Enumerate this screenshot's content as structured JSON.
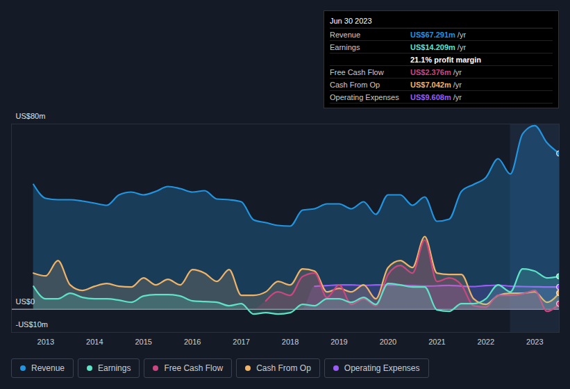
{
  "chart_data": {
    "type": "area",
    "x": [
      2012.75,
      2013.0,
      2013.25,
      2013.5,
      2013.75,
      2014.0,
      2014.25,
      2014.5,
      2014.75,
      2015.0,
      2015.25,
      2015.5,
      2015.75,
      2016.0,
      2016.25,
      2016.5,
      2016.75,
      2017.0,
      2017.25,
      2017.5,
      2017.75,
      2018.0,
      2018.25,
      2018.5,
      2018.75,
      2019.0,
      2019.25,
      2019.5,
      2019.75,
      2020.0,
      2020.25,
      2020.5,
      2020.75,
      2021.0,
      2021.25,
      2021.5,
      2021.75,
      2022.0,
      2022.25,
      2022.5,
      2022.75,
      2023.0,
      2023.25,
      2023.5
    ],
    "series": [
      {
        "name": "Revenue",
        "color": "#2394df",
        "values": [
          53.9,
          47.9,
          47.3,
          47.3,
          46.7,
          45.8,
          44.9,
          49.4,
          50.6,
          49.4,
          50.9,
          53.0,
          52.1,
          50.6,
          51.2,
          47.6,
          47.3,
          46.4,
          38.6,
          37.4,
          36.2,
          35.9,
          42.8,
          43.4,
          45.5,
          45.5,
          43.4,
          46.4,
          41.0,
          49.4,
          49.4,
          44.9,
          48.5,
          38.0,
          38.9,
          50.9,
          53.9,
          56.9,
          65.0,
          58.4,
          75.7,
          79.3,
          71.9,
          67.291
        ]
      },
      {
        "name": "Earnings",
        "color": "#5fe3c8",
        "values": [
          9.9,
          4.5,
          4.5,
          6.9,
          5.1,
          4.5,
          4.5,
          3.9,
          3.0,
          5.7,
          6.3,
          6.3,
          5.7,
          3.6,
          3.3,
          3.0,
          1.5,
          2.4,
          -2.1,
          -1.5,
          -2.1,
          -1.5,
          2.1,
          1.5,
          4.5,
          4.5,
          3.0,
          5.1,
          2.1,
          11.1,
          10.5,
          9.6,
          9.6,
          -0.3,
          -0.9,
          2.4,
          2.4,
          4.5,
          10.5,
          7.5,
          17.4,
          16.5,
          13.5,
          14.209
        ]
      },
      {
        "name": "Free Cash Flow",
        "color": "#cc4680",
        "values": [
          null,
          null,
          null,
          null,
          null,
          null,
          null,
          null,
          null,
          null,
          null,
          null,
          null,
          null,
          null,
          null,
          null,
          null,
          null,
          3.6,
          7.5,
          6.0,
          14.1,
          15.6,
          5.1,
          10.5,
          2.1,
          4.5,
          1.5,
          15.0,
          18.9,
          15.6,
          29.9,
          12.0,
          13.5,
          10.5,
          1.5,
          0.9,
          6.0,
          6.0,
          6.6,
          8.1,
          -0.9,
          2.376
        ]
      },
      {
        "name": "Cash From Op",
        "color": "#f0b469",
        "values": [
          15.6,
          14.4,
          21.0,
          10.5,
          8.1,
          9.9,
          11.1,
          9.9,
          9.6,
          13.5,
          10.5,
          12.9,
          10.5,
          17.1,
          15.6,
          12.0,
          17.1,
          6.0,
          6.0,
          7.5,
          12.0,
          10.5,
          17.4,
          16.5,
          7.5,
          9.0,
          7.5,
          10.5,
          4.5,
          18.0,
          21.0,
          18.0,
          31.4,
          15.6,
          15.0,
          15.0,
          4.5,
          2.1,
          6.0,
          6.9,
          6.9,
          7.5,
          3.0,
          7.042
        ]
      },
      {
        "name": "Operating Expenses",
        "color": "#9b5cf6",
        "values": [
          null,
          null,
          null,
          null,
          null,
          null,
          null,
          null,
          null,
          null,
          null,
          null,
          null,
          null,
          null,
          null,
          null,
          null,
          null,
          null,
          null,
          null,
          null,
          9.9,
          10.2,
          10.5,
          10.5,
          10.3,
          10.5,
          10.5,
          10.4,
          10.2,
          10.0,
          10.1,
          10.3,
          10.0,
          9.8,
          10.2,
          10.4,
          10.0,
          9.8,
          9.7,
          9.6,
          9.608
        ]
      }
    ],
    "xlim": [
      2012.3,
      2023.5
    ],
    "xticks": [
      2013,
      2014,
      2015,
      2016,
      2017,
      2018,
      2019,
      2020,
      2021,
      2022,
      2023
    ],
    "ylim": [
      -10,
      80
    ],
    "yticks": [
      {
        "value": -10,
        "label": "-US$10m"
      },
      {
        "value": 0,
        "label": "US$0"
      },
      {
        "value": 80,
        "label": "US$80m"
      }
    ],
    "grid": true,
    "legend": "bottom-left",
    "highlight_x": [
      2022.5,
      2023.5
    ],
    "annotations": {
      "title": "Jun 30 2023",
      "rows": [
        {
          "label": "Revenue",
          "value": "US$67.291m",
          "unit": "/yr"
        },
        {
          "label": "Earnings",
          "value": "US$14.209m",
          "unit": "/yr"
        },
        {
          "value": "21.1% profit margin"
        },
        {
          "label": "Free Cash Flow",
          "value": "US$2.376m",
          "unit": "/yr"
        },
        {
          "label": "Cash From Op",
          "value": "US$7.042m",
          "unit": "/yr"
        },
        {
          "label": "Operating Expenses",
          "value": "US$9.608m",
          "unit": "/yr"
        }
      ]
    }
  }
}
